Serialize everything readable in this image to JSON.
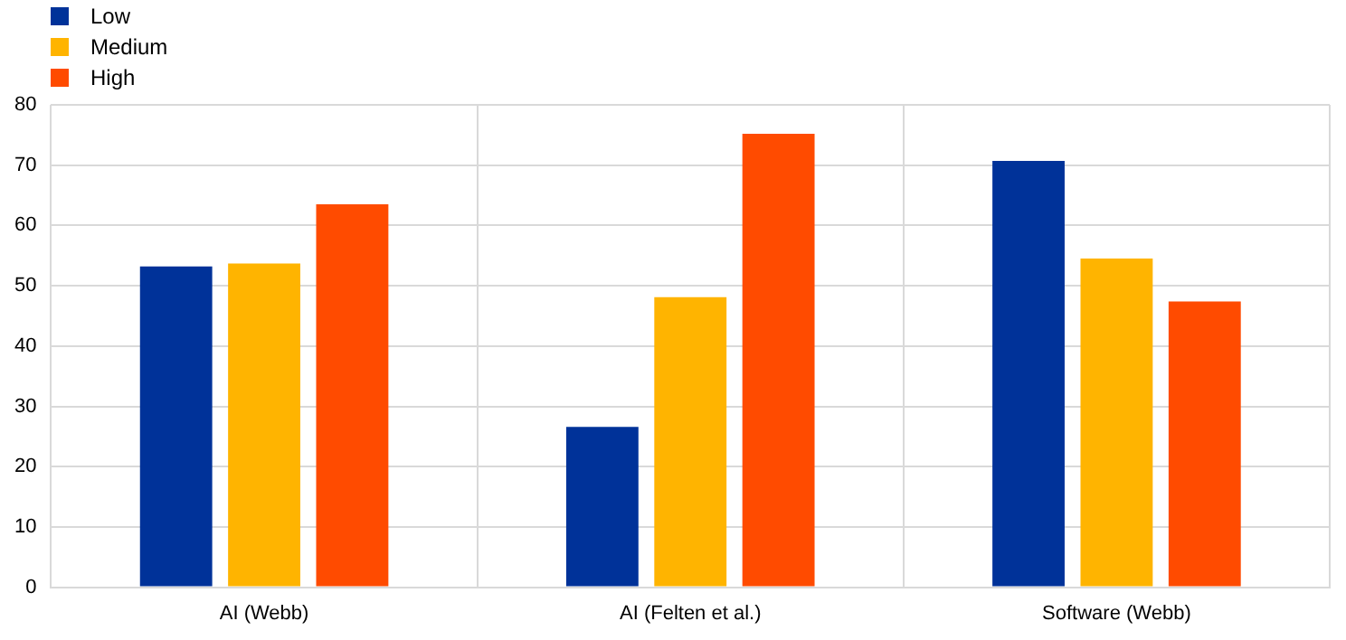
{
  "chart_data": {
    "type": "bar",
    "categories": [
      "AI (Webb)",
      "AI (Felten et al.)",
      "Software (Webb)"
    ],
    "series": [
      {
        "name": "Low",
        "color": "#003299",
        "values": [
          53.2,
          26.6,
          70.7
        ]
      },
      {
        "name": "Medium",
        "color": "#ffb400",
        "values": [
          53.7,
          48.1,
          54.5
        ]
      },
      {
        "name": "High",
        "color": "#ff4b00",
        "values": [
          63.5,
          75.2,
          47.4
        ]
      }
    ],
    "ylim": [
      0,
      80
    ],
    "yticks": [
      0,
      10,
      20,
      30,
      40,
      50,
      60,
      70,
      80
    ],
    "grid": true,
    "legend": "top left"
  }
}
